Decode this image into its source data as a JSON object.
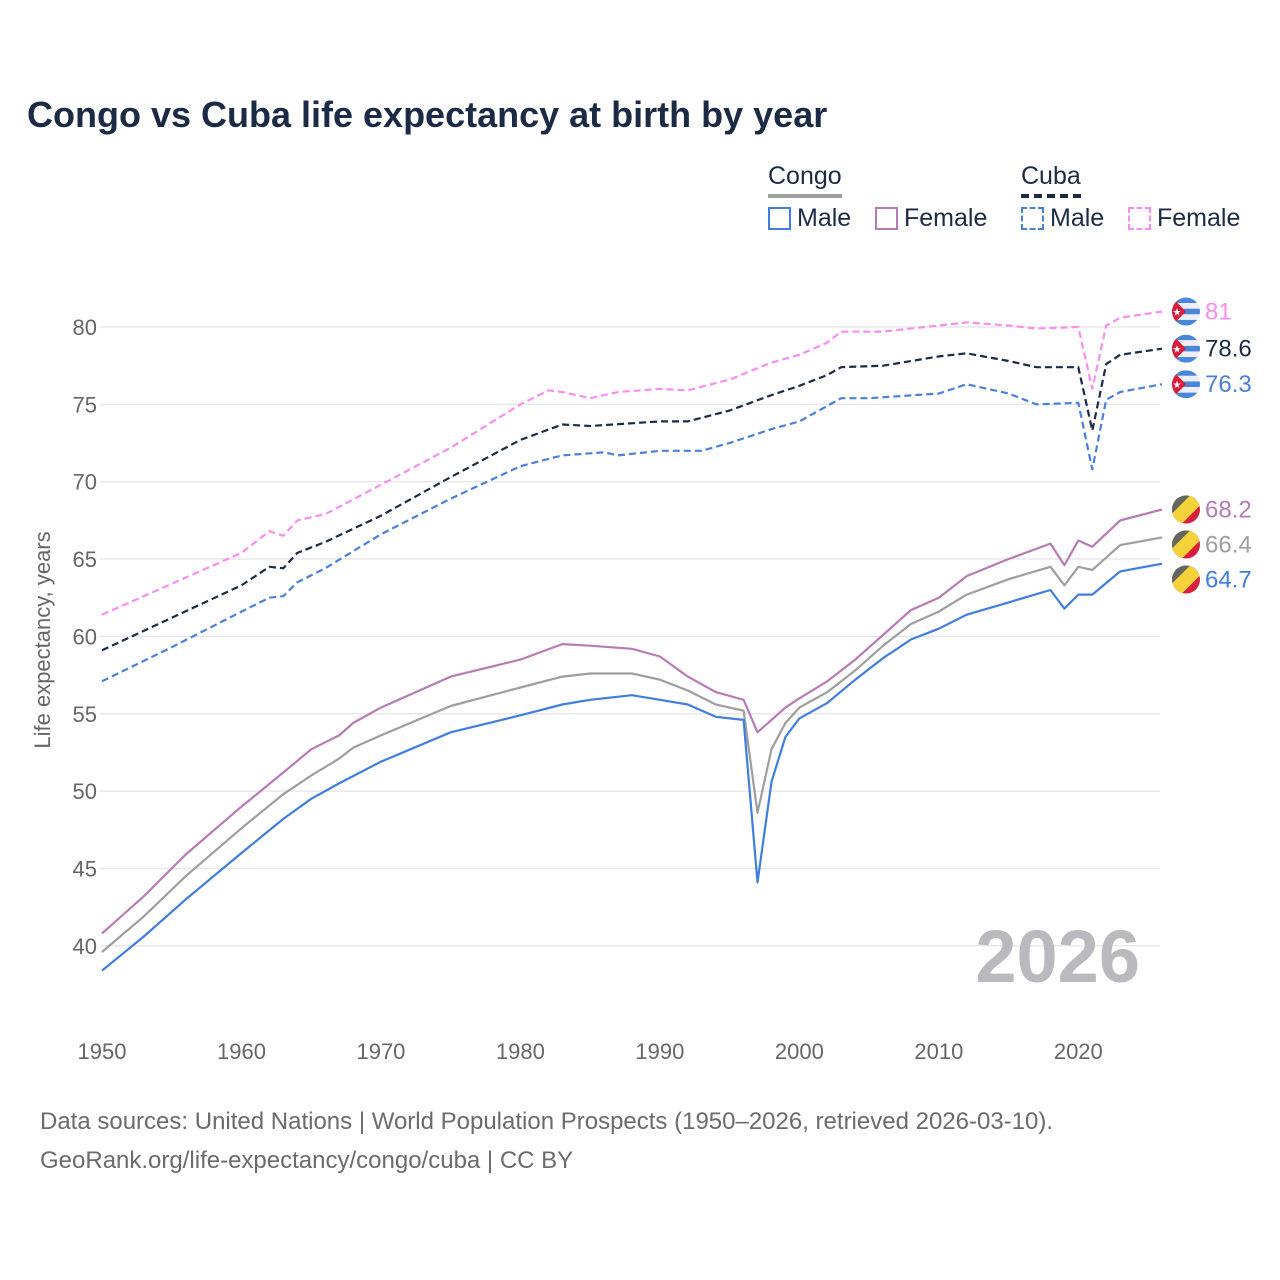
{
  "title": "Congo vs Cuba life expectancy at birth by year",
  "legend": {
    "groups": [
      {
        "name": "Congo",
        "items": [
          {
            "label": "Male"
          },
          {
            "label": "Female"
          }
        ]
      },
      {
        "name": "Cuba",
        "items": [
          {
            "label": "Male"
          },
          {
            "label": "Female"
          }
        ]
      }
    ]
  },
  "watermark_year": "2026",
  "footer": {
    "line1": "Data sources: United Nations | World Population Prospects (1950–2026, retrieved 2026-03-10).",
    "line2": "GeoRank.org/life-expectancy/congo/cuba | CC BY"
  },
  "chart_data": {
    "type": "line",
    "title": "Congo vs Cuba life expectancy at birth by year",
    "xlabel": "",
    "ylabel": "Life expectancy, years",
    "xlim": [
      1950,
      2026
    ],
    "ylim": [
      37,
      83
    ],
    "xticks": [
      1950,
      1960,
      1970,
      1980,
      1990,
      2000,
      2010,
      2020
    ],
    "yticks": [
      40,
      45,
      50,
      55,
      60,
      65,
      70,
      75,
      80
    ],
    "grid": true,
    "legend_position": "top-right",
    "series": [
      {
        "name": "Cuba Female",
        "country": "Cuba",
        "sex": "Female",
        "color": "#f98df0",
        "dash": true,
        "end_label": "81",
        "points": [
          [
            1950,
            61.4
          ],
          [
            1955,
            63.4
          ],
          [
            1960,
            65.4
          ],
          [
            1962,
            66.8
          ],
          [
            1963,
            66.5
          ],
          [
            1964,
            67.5
          ],
          [
            1966,
            67.9
          ],
          [
            1970,
            69.8
          ],
          [
            1975,
            72.2
          ],
          [
            1980,
            75.0
          ],
          [
            1982,
            75.9
          ],
          [
            1983,
            75.8
          ],
          [
            1985,
            75.4
          ],
          [
            1987,
            75.8
          ],
          [
            1990,
            76.0
          ],
          [
            1992,
            75.9
          ],
          [
            1995,
            76.6
          ],
          [
            1998,
            77.7
          ],
          [
            2000,
            78.2
          ],
          [
            2002,
            79.0
          ],
          [
            2003,
            79.7
          ],
          [
            2006,
            79.7
          ],
          [
            2010,
            80.1
          ],
          [
            2012,
            80.3
          ],
          [
            2015,
            80.1
          ],
          [
            2017,
            79.9
          ],
          [
            2020,
            80.0
          ],
          [
            2021,
            76.0
          ],
          [
            2022,
            80.1
          ],
          [
            2023,
            80.6
          ],
          [
            2026,
            81.0
          ]
        ]
      },
      {
        "name": "Cuba Total",
        "country": "Cuba",
        "sex": "Total",
        "color": "#1b2a45",
        "dash": true,
        "end_label": "78.6",
        "points": [
          [
            1950,
            59.1
          ],
          [
            1955,
            61.2
          ],
          [
            1960,
            63.3
          ],
          [
            1962,
            64.5
          ],
          [
            1963,
            64.4
          ],
          [
            1964,
            65.4
          ],
          [
            1966,
            66.1
          ],
          [
            1970,
            67.8
          ],
          [
            1975,
            70.3
          ],
          [
            1980,
            72.7
          ],
          [
            1983,
            73.7
          ],
          [
            1985,
            73.6
          ],
          [
            1990,
            73.9
          ],
          [
            1992,
            73.9
          ],
          [
            1995,
            74.6
          ],
          [
            1998,
            75.6
          ],
          [
            2000,
            76.2
          ],
          [
            2002,
            76.9
          ],
          [
            2003,
            77.4
          ],
          [
            2006,
            77.5
          ],
          [
            2010,
            78.1
          ],
          [
            2012,
            78.3
          ],
          [
            2015,
            77.8
          ],
          [
            2017,
            77.4
          ],
          [
            2020,
            77.4
          ],
          [
            2021,
            73.3
          ],
          [
            2022,
            77.6
          ],
          [
            2023,
            78.2
          ],
          [
            2026,
            78.6
          ]
        ]
      },
      {
        "name": "Cuba Male",
        "country": "Cuba",
        "sex": "Male",
        "color": "#4a80dd",
        "dash": true,
        "end_label": "76.3",
        "points": [
          [
            1950,
            57.1
          ],
          [
            1955,
            59.3
          ],
          [
            1960,
            61.6
          ],
          [
            1962,
            62.5
          ],
          [
            1963,
            62.6
          ],
          [
            1964,
            63.5
          ],
          [
            1966,
            64.4
          ],
          [
            1970,
            66.6
          ],
          [
            1975,
            68.9
          ],
          [
            1980,
            71.0
          ],
          [
            1983,
            71.7
          ],
          [
            1986,
            71.9
          ],
          [
            1987,
            71.7
          ],
          [
            1990,
            72.0
          ],
          [
            1993,
            72.0
          ],
          [
            1995,
            72.5
          ],
          [
            1998,
            73.4
          ],
          [
            2000,
            73.9
          ],
          [
            2003,
            75.4
          ],
          [
            2005,
            75.4
          ],
          [
            2010,
            75.7
          ],
          [
            2012,
            76.3
          ],
          [
            2015,
            75.7
          ],
          [
            2017,
            75.0
          ],
          [
            2020,
            75.1
          ],
          [
            2021,
            70.8
          ],
          [
            2022,
            75.3
          ],
          [
            2023,
            75.8
          ],
          [
            2026,
            76.3
          ]
        ]
      },
      {
        "name": "Congo Female",
        "country": "Congo",
        "sex": "Female",
        "color": "#b77bb4",
        "dash": false,
        "end_label": "68.2",
        "points": [
          [
            1950,
            40.8
          ],
          [
            1953,
            43.2
          ],
          [
            1956,
            45.9
          ],
          [
            1960,
            49.0
          ],
          [
            1963,
            51.2
          ],
          [
            1965,
            52.7
          ],
          [
            1967,
            53.6
          ],
          [
            1968,
            54.4
          ],
          [
            1970,
            55.4
          ],
          [
            1975,
            57.4
          ],
          [
            1980,
            58.5
          ],
          [
            1983,
            59.5
          ],
          [
            1985,
            59.4
          ],
          [
            1988,
            59.2
          ],
          [
            1990,
            58.7
          ],
          [
            1992,
            57.4
          ],
          [
            1994,
            56.4
          ],
          [
            1996,
            55.9
          ],
          [
            1997,
            53.8
          ],
          [
            1998,
            54.6
          ],
          [
            1999,
            55.4
          ],
          [
            2000,
            56.0
          ],
          [
            2002,
            57.1
          ],
          [
            2004,
            58.5
          ],
          [
            2006,
            60.1
          ],
          [
            2008,
            61.7
          ],
          [
            2010,
            62.5
          ],
          [
            2012,
            63.9
          ],
          [
            2015,
            65.0
          ],
          [
            2018,
            66.0
          ],
          [
            2019,
            64.6
          ],
          [
            2020,
            66.2
          ],
          [
            2021,
            65.8
          ],
          [
            2023,
            67.5
          ],
          [
            2026,
            68.2
          ]
        ]
      },
      {
        "name": "Congo Total",
        "country": "Congo",
        "sex": "Total",
        "color": "#9e9e9e",
        "dash": false,
        "end_label": "66.4",
        "points": [
          [
            1950,
            39.6
          ],
          [
            1953,
            41.9
          ],
          [
            1956,
            44.5
          ],
          [
            1960,
            47.6
          ],
          [
            1963,
            49.8
          ],
          [
            1965,
            51.0
          ],
          [
            1967,
            52.1
          ],
          [
            1968,
            52.8
          ],
          [
            1970,
            53.6
          ],
          [
            1975,
            55.5
          ],
          [
            1980,
            56.7
          ],
          [
            1983,
            57.4
          ],
          [
            1985,
            57.6
          ],
          [
            1988,
            57.6
          ],
          [
            1990,
            57.2
          ],
          [
            1992,
            56.5
          ],
          [
            1994,
            55.6
          ],
          [
            1996,
            55.2
          ],
          [
            1997,
            48.6
          ],
          [
            1998,
            52.7
          ],
          [
            1999,
            54.4
          ],
          [
            2000,
            55.4
          ],
          [
            2002,
            56.4
          ],
          [
            2004,
            57.8
          ],
          [
            2006,
            59.4
          ],
          [
            2008,
            60.8
          ],
          [
            2010,
            61.6
          ],
          [
            2012,
            62.7
          ],
          [
            2015,
            63.7
          ],
          [
            2018,
            64.5
          ],
          [
            2019,
            63.3
          ],
          [
            2020,
            64.5
          ],
          [
            2021,
            64.3
          ],
          [
            2023,
            65.9
          ],
          [
            2026,
            66.4
          ]
        ]
      },
      {
        "name": "Congo Male",
        "country": "Congo",
        "sex": "Male",
        "color": "#3f7ee0",
        "dash": false,
        "end_label": "64.7",
        "points": [
          [
            1950,
            38.4
          ],
          [
            1953,
            40.6
          ],
          [
            1956,
            43.0
          ],
          [
            1960,
            46.0
          ],
          [
            1963,
            48.2
          ],
          [
            1965,
            49.5
          ],
          [
            1967,
            50.5
          ],
          [
            1970,
            51.9
          ],
          [
            1975,
            53.8
          ],
          [
            1980,
            54.9
          ],
          [
            1983,
            55.6
          ],
          [
            1985,
            55.9
          ],
          [
            1988,
            56.2
          ],
          [
            1990,
            55.9
          ],
          [
            1992,
            55.6
          ],
          [
            1994,
            54.8
          ],
          [
            1996,
            54.6
          ],
          [
            1997,
            44.1
          ],
          [
            1998,
            50.6
          ],
          [
            1999,
            53.5
          ],
          [
            2000,
            54.7
          ],
          [
            2002,
            55.7
          ],
          [
            2004,
            57.2
          ],
          [
            2006,
            58.6
          ],
          [
            2008,
            59.8
          ],
          [
            2010,
            60.5
          ],
          [
            2012,
            61.4
          ],
          [
            2015,
            62.2
          ],
          [
            2018,
            63.0
          ],
          [
            2019,
            61.8
          ],
          [
            2020,
            62.7
          ],
          [
            2021,
            62.7
          ],
          [
            2023,
            64.2
          ],
          [
            2026,
            64.7
          ]
        ]
      }
    ]
  }
}
